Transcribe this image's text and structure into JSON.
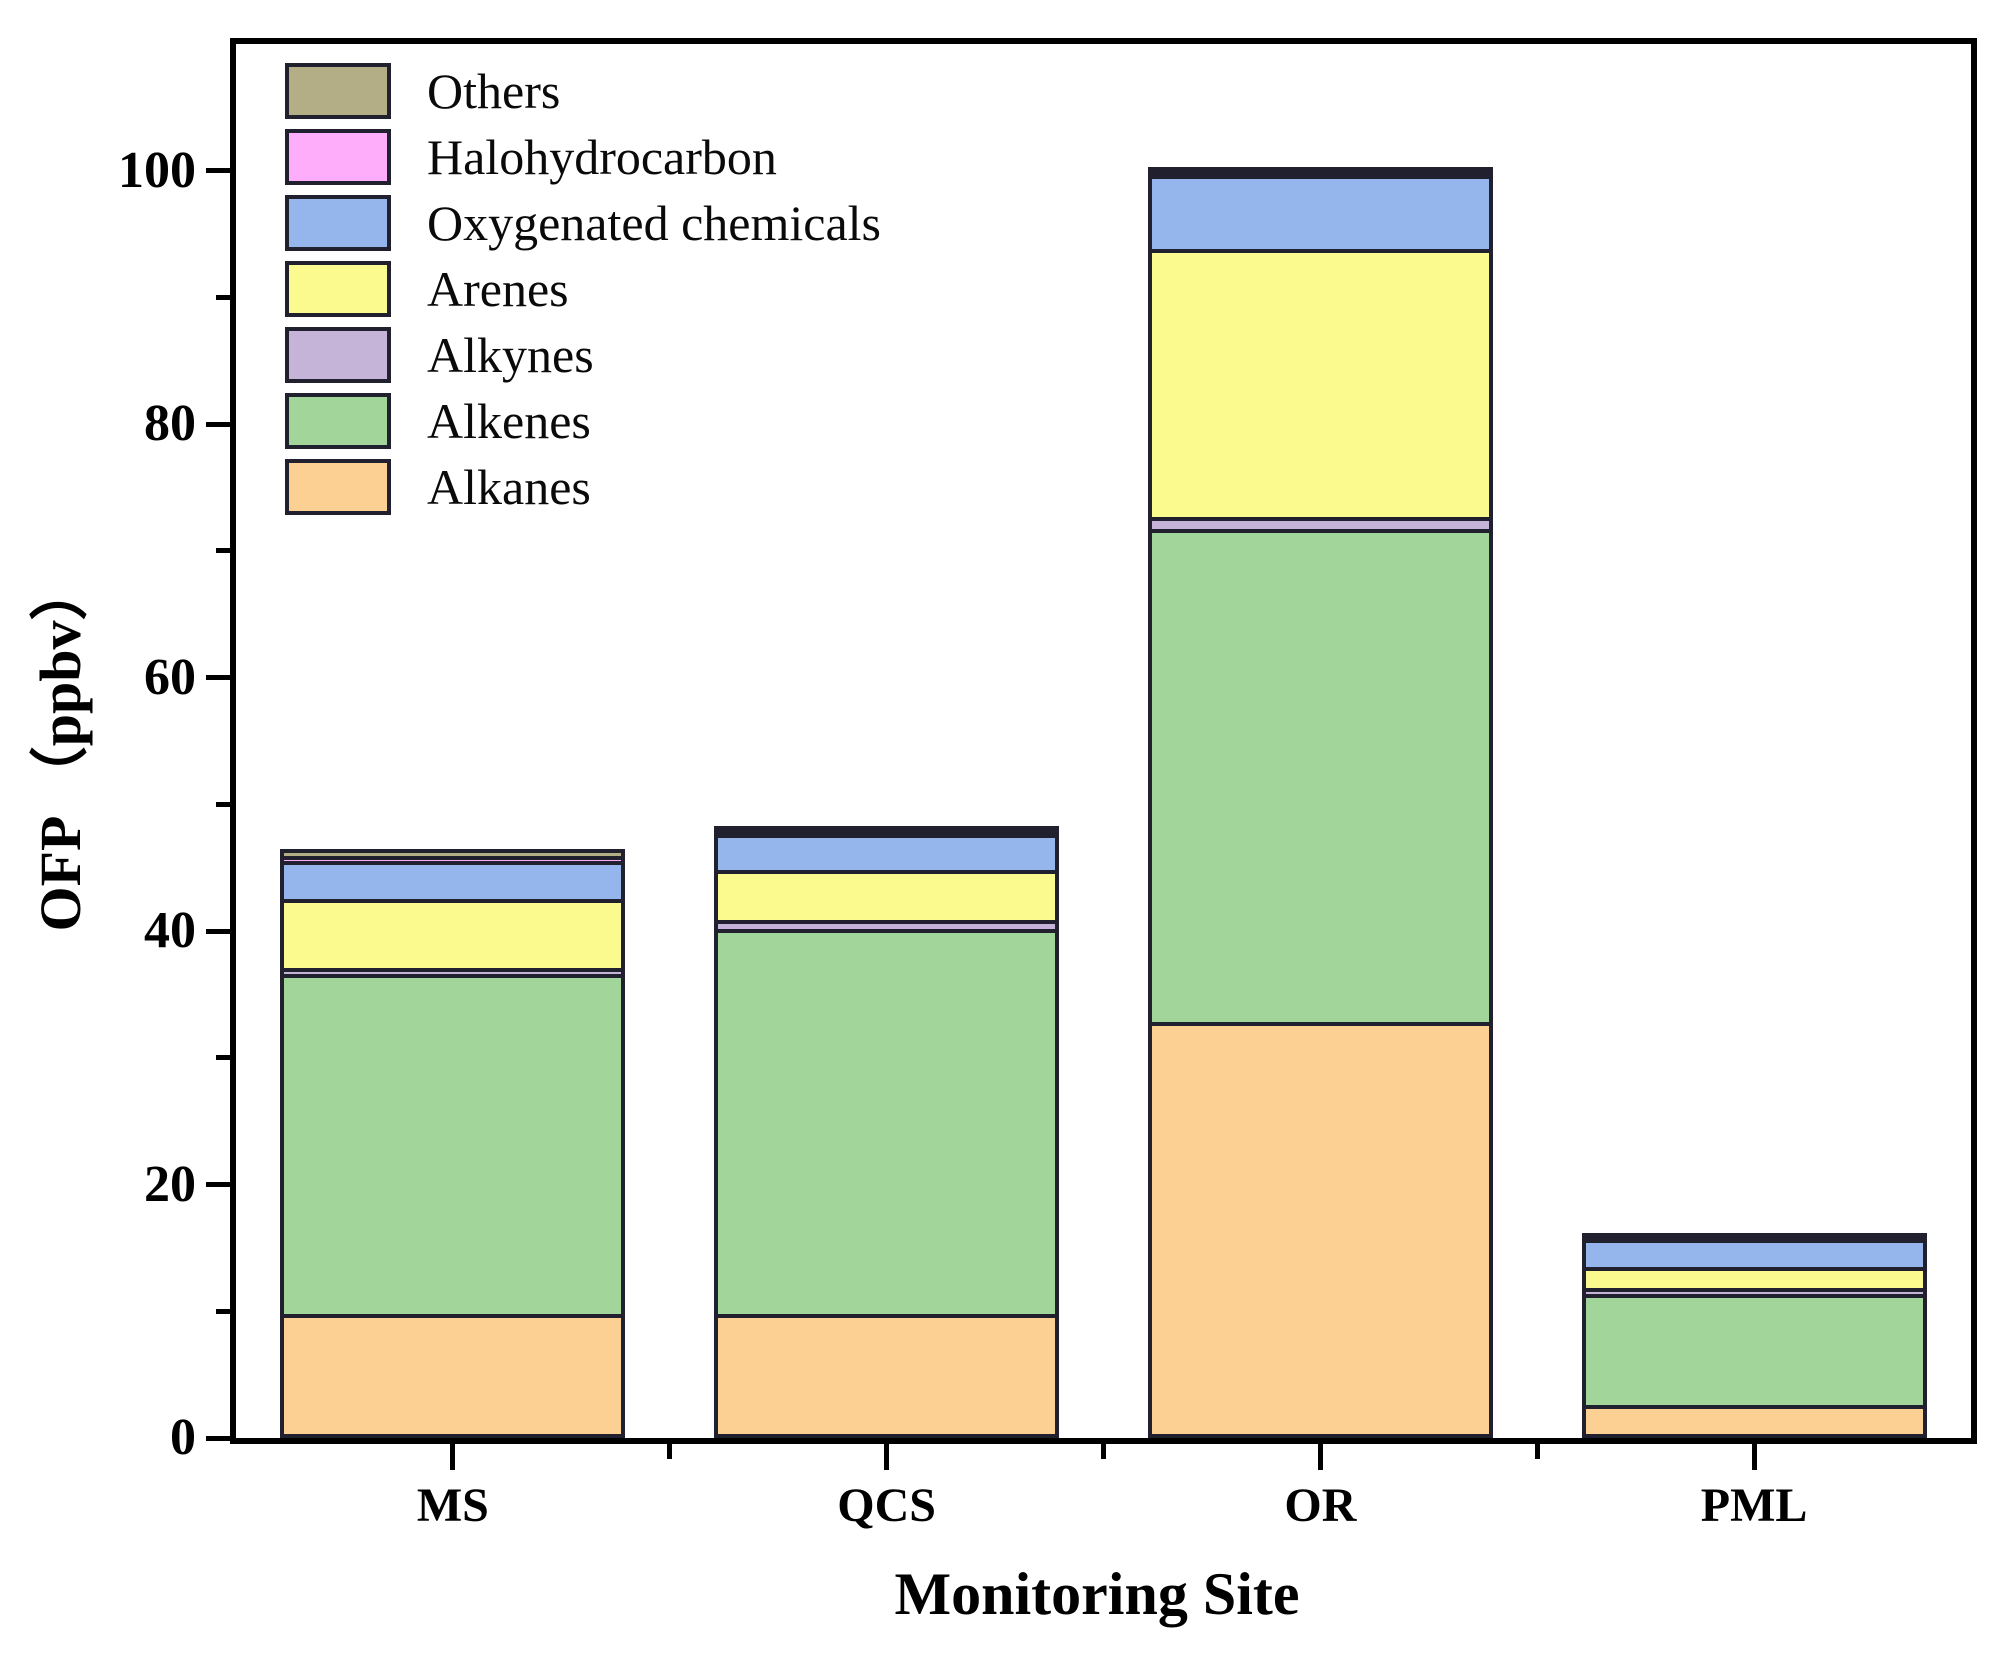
{
  "chart_data": {
    "type": "bar",
    "stacked": true,
    "title": "",
    "xlabel": "Monitoring Site",
    "ylabel": "OFP （ppbv）",
    "categories": [
      "MS",
      "QCS",
      "OR",
      "PML"
    ],
    "series": [
      {
        "name": "Alkanes",
        "color": "#fccf92",
        "values": [
          9.8,
          9.8,
          32.8,
          2.6
        ]
      },
      {
        "name": "Alkenes",
        "color": "#a2d599",
        "values": [
          26.8,
          30.4,
          38.9,
          8.8
        ]
      },
      {
        "name": "Alkynes",
        "color": "#c6b4d8",
        "values": [
          0.5,
          0.7,
          1.0,
          0.4
        ]
      },
      {
        "name": "Arenes",
        "color": "#fbfa8f",
        "values": [
          5.4,
          3.9,
          21.1,
          1.7
        ]
      },
      {
        "name": "Oxygenated chemicals",
        "color": "#94b6ec",
        "values": [
          3.0,
          2.9,
          5.9,
          2.3
        ]
      },
      {
        "name": "Halohydrocarbon",
        "color": "#fdadf9",
        "values": [
          0.4,
          0.3,
          0.3,
          0.2
        ]
      },
      {
        "name": "Others",
        "color": "#b3ae86",
        "values": [
          0.6,
          0.3,
          0.3,
          0.2
        ]
      }
    ],
    "totals": [
      46.5,
      48.3,
      100.3,
      16.2
    ],
    "legend_order_top_to_bottom": [
      "Others",
      "Halohydrocarbon",
      "Oxygenated chemicals",
      "Arenes",
      "Alkynes",
      "Alkenes",
      "Alkanes"
    ],
    "legend_position": "upper-left-inside",
    "ylim": [
      0,
      110
    ],
    "yticks_major": [
      0,
      20,
      40,
      60,
      80,
      100
    ],
    "yticks_minor": [
      10,
      30,
      50,
      70,
      90
    ],
    "grid": false,
    "frame": "full-box",
    "segment_border_color": "#20202e",
    "axis_color": "#000000",
    "background_color": "#ffffff"
  }
}
